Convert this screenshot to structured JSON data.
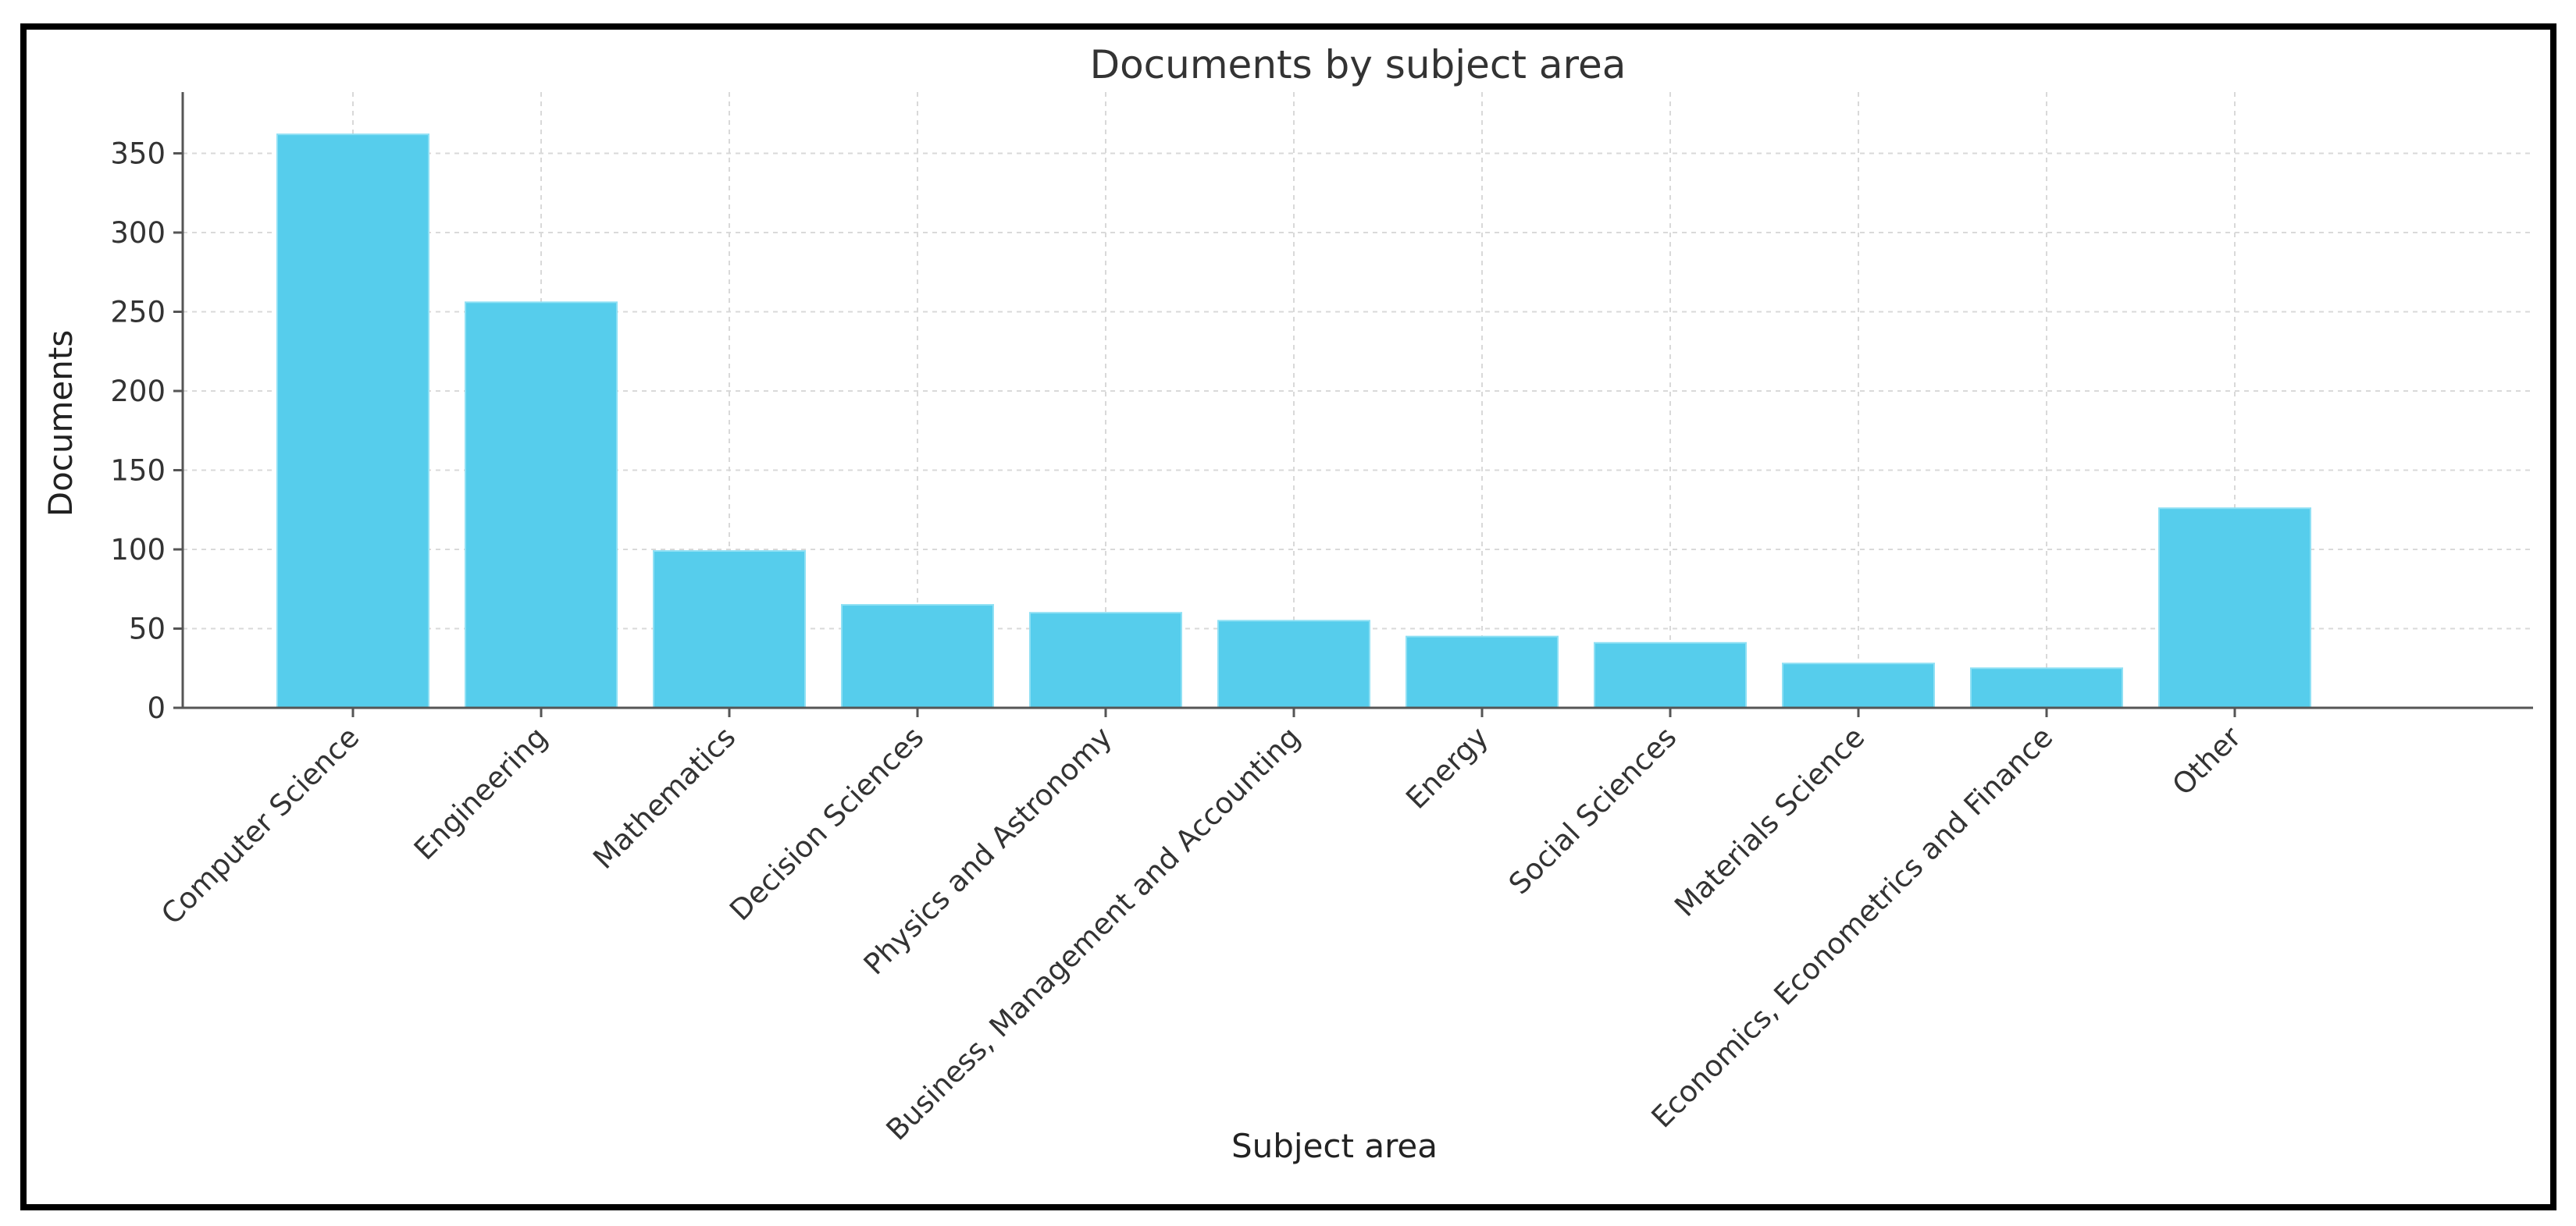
{
  "chart_data": {
    "type": "bar",
    "title": "Documents by subject area",
    "xlabel": "Subject area",
    "ylabel": "Documents",
    "categories": [
      "Computer Science",
      "Engineering",
      "Mathematics",
      "Decision Sciences",
      "Physics and Astronomy",
      "Business, Management and Accounting",
      "Energy",
      "Social Sciences",
      "Materials Science",
      "Economics, Econometrics and Finance",
      "Other"
    ],
    "values": [
      362,
      256,
      99,
      65,
      60,
      55,
      45,
      41,
      28,
      25,
      126
    ],
    "ylim": [
      0,
      380
    ],
    "yticks": [
      0,
      50,
      100,
      150,
      200,
      250,
      300,
      350
    ],
    "grid": true,
    "bar_color": "#56cdec"
  }
}
